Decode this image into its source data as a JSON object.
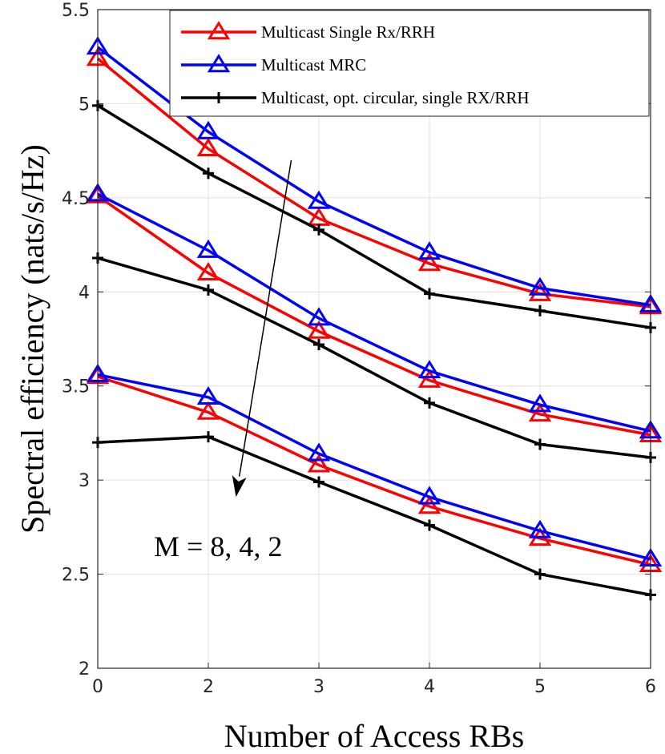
{
  "chart_data": {
    "type": "line",
    "xlabel": "Number of Access RBs",
    "ylabel": "Spectral efficiency (nats/s/Hz)",
    "categories": [
      "0",
      "2",
      "3",
      "4",
      "5",
      "6"
    ],
    "ylim": [
      2,
      5.5
    ],
    "yticks": [
      "2",
      "2.5",
      "3",
      "3.5",
      "4",
      "4.5",
      "5",
      "5.5"
    ],
    "grid": true,
    "legend_position": "top-right",
    "legend": [
      {
        "label": "Multicast Single Rx/RRH",
        "color": "#ff0000",
        "marker": "triangle"
      },
      {
        "label": "Multicast MRC",
        "color": "#0000ff",
        "marker": "triangle"
      },
      {
        "label": "Multicast, opt. circular, single RX/RRH",
        "color": "#000000",
        "marker": "plus"
      }
    ],
    "series": [
      {
        "legend_index": 0,
        "color": "#ff0000",
        "marker": "triangle",
        "values": [
          5.24,
          4.76,
          4.39,
          4.15,
          3.99,
          3.92
        ]
      },
      {
        "legend_index": 1,
        "color": "#0000ff",
        "marker": "triangle",
        "values": [
          5.3,
          4.85,
          4.48,
          4.21,
          4.02,
          3.93
        ]
      },
      {
        "legend_index": 2,
        "color": "#000000",
        "marker": "plus",
        "values": [
          4.99,
          4.63,
          4.33,
          3.99,
          3.9,
          3.81
        ]
      },
      {
        "legend_index": 0,
        "color": "#ff0000",
        "marker": "triangle",
        "values": [
          4.51,
          4.1,
          3.79,
          3.53,
          3.35,
          3.24
        ]
      },
      {
        "legend_index": 1,
        "color": "#0000ff",
        "marker": "triangle",
        "values": [
          4.52,
          4.22,
          3.86,
          3.58,
          3.4,
          3.26
        ]
      },
      {
        "legend_index": 2,
        "color": "#000000",
        "marker": "plus",
        "values": [
          4.18,
          4.01,
          3.72,
          3.41,
          3.19,
          3.12
        ]
      },
      {
        "legend_index": 0,
        "color": "#ff0000",
        "marker": "triangle",
        "values": [
          3.55,
          3.36,
          3.08,
          2.86,
          2.69,
          2.55
        ]
      },
      {
        "legend_index": 1,
        "color": "#0000ff",
        "marker": "triangle",
        "values": [
          3.56,
          3.44,
          3.14,
          2.91,
          2.73,
          2.58
        ]
      },
      {
        "legend_index": 2,
        "color": "#000000",
        "marker": "plus",
        "values": [
          3.2,
          3.23,
          2.99,
          2.76,
          2.5,
          2.39
        ]
      }
    ],
    "annotation": {
      "text": "M = 8, 4, 2",
      "arrow_from": {
        "x_index": 1.75,
        "y": 4.7
      },
      "arrow_to": {
        "x_index": 1.25,
        "y": 2.91
      }
    }
  }
}
